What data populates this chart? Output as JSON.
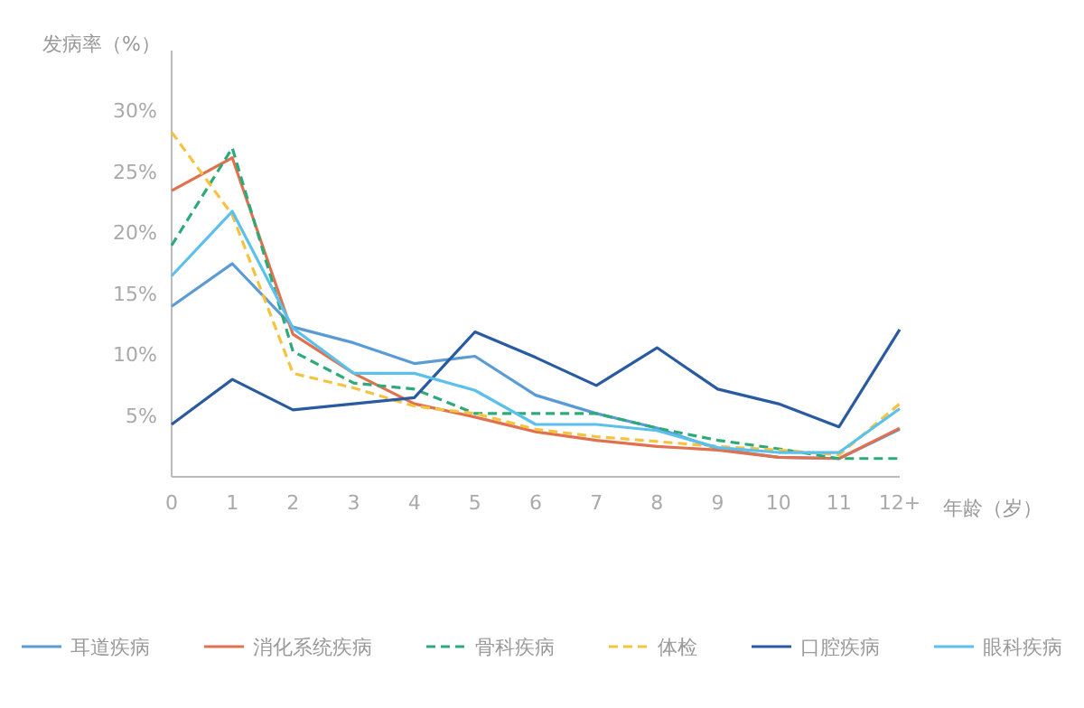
{
  "chart_data": {
    "type": "line",
    "xlabel": "年龄（岁）",
    "ylabel": "发病率（%）",
    "categories": [
      "0",
      "1",
      "2",
      "3",
      "4",
      "5",
      "6",
      "7",
      "8",
      "9",
      "10",
      "11",
      "12+"
    ],
    "ylim": [
      0,
      35
    ],
    "yticks": [
      {
        "value": 5,
        "label": "5%"
      },
      {
        "value": 10,
        "label": "10%"
      },
      {
        "value": 15,
        "label": "15%"
      },
      {
        "value": 20,
        "label": "20%"
      },
      {
        "value": 25,
        "label": "25%"
      },
      {
        "value": 30,
        "label": "30%"
      }
    ],
    "grid": false,
    "legend": "bottom",
    "marker": "none",
    "series": [
      {
        "name": "耳道疾病",
        "color": "#5b9bd5",
        "line_style": "solid",
        "values": [
          14,
          17.5,
          12.3,
          11,
          9.3,
          9.9,
          6.7,
          5.2,
          4,
          2.3,
          1.6,
          1.5,
          3.9
        ]
      },
      {
        "name": "消化系统疾病",
        "color": "#e0714f",
        "line_style": "solid",
        "values": [
          23.5,
          26.2,
          11.7,
          8.5,
          6,
          4.9,
          3.7,
          3,
          2.5,
          2.2,
          1.6,
          1.5,
          4
        ]
      },
      {
        "name": "骨科疾病",
        "color": "#2eaa7a",
        "line_style": "dashed",
        "values": [
          19,
          27,
          10.3,
          7.7,
          7.2,
          5.2,
          5.2,
          5.2,
          4,
          3,
          2.3,
          1.5,
          1.5
        ]
      },
      {
        "name": "体检",
        "color": "#f5c342",
        "line_style": "dashed",
        "values": [
          28.3,
          21.5,
          8.5,
          7.3,
          5.8,
          5.2,
          3.9,
          3.3,
          2.9,
          2.5,
          2.2,
          1.8,
          6
        ]
      },
      {
        "name": "口腔疾病",
        "color": "#2a5aa0",
        "line_style": "solid",
        "values": [
          4.3,
          8,
          5.5,
          6,
          6.5,
          11.9,
          9.8,
          7.5,
          10.6,
          7.2,
          6,
          4.1,
          12.1
        ]
      },
      {
        "name": "眼科疾病",
        "color": "#5bc0eb",
        "line_style": "solid",
        "values": [
          16.5,
          21.8,
          12.2,
          8.5,
          8.5,
          7.1,
          4.3,
          4.3,
          3.8,
          2.4,
          2,
          2,
          5.6
        ]
      }
    ]
  }
}
